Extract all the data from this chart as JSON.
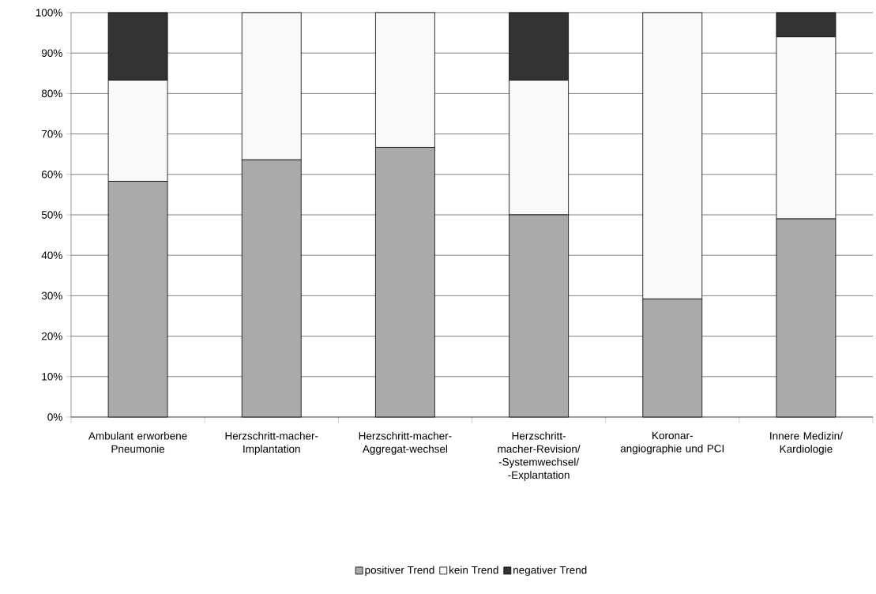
{
  "chart_data": {
    "type": "bar",
    "stacked": true,
    "categories": [
      "Ambulant erworbene Pneumonie",
      "Herzschritt-macher-Implantation",
      "Herzschritt-macher-Aggregat-wechsel",
      "Herzschritt-macher-Revision/ -Systemwechsel/ -Explantation",
      "Koronar-angiographie und PCI",
      "Innere Medizin/ Kardiologie"
    ],
    "series": [
      {
        "name": "positiver Trend",
        "color": "#aaaaaa",
        "values": [
          58.3,
          63.6,
          66.7,
          50,
          29.2,
          49
        ]
      },
      {
        "name": "kein Trend",
        "color": "#f8f8f8",
        "values": [
          25,
          36.4,
          33.3,
          33.3,
          70.8,
          45
        ]
      },
      {
        "name": "negativer Trend",
        "color": "#333333",
        "values": [
          16.7,
          0,
          0,
          16.7,
          0,
          6
        ]
      }
    ],
    "ylim": [
      0,
      100
    ],
    "yticks": [
      {
        "value": 0,
        "label": "0%"
      },
      {
        "value": 10,
        "label": "10%"
      },
      {
        "value": 20,
        "label": "20%"
      },
      {
        "value": 30,
        "label": "30%"
      },
      {
        "value": 40,
        "label": "40%"
      },
      {
        "value": 50,
        "label": "50%"
      },
      {
        "value": 60,
        "label": "60%"
      },
      {
        "value": 70,
        "label": "70%"
      },
      {
        "value": 80,
        "label": "80%"
      },
      {
        "value": 90,
        "label": "90%"
      },
      {
        "value": 100,
        "label": "100%"
      }
    ],
    "grid": "y",
    "legend": "bottom"
  }
}
